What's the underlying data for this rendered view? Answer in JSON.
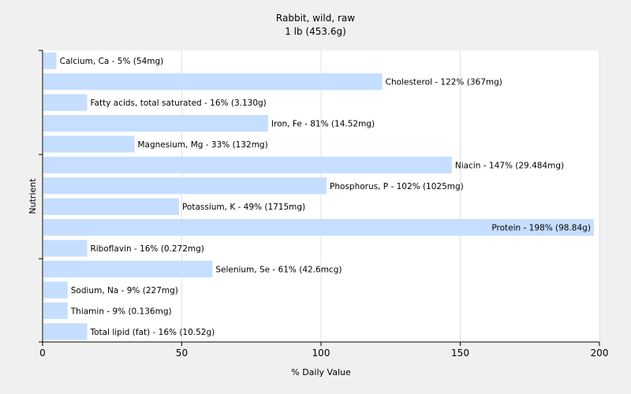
{
  "chart_data": {
    "type": "bar",
    "orientation": "horizontal",
    "title": "Rabbit, wild, raw",
    "subtitle": "1 lb (453.6g)",
    "xlabel": "% Daily Value",
    "ylabel": "Nutrient",
    "xlim": [
      0,
      200
    ],
    "x_ticks": [
      "0",
      "50",
      "100",
      "150",
      "200"
    ],
    "grid": true,
    "categories": [
      "Calcium, Ca",
      "Cholesterol",
      "Fatty acids, total saturated",
      "Iron, Fe",
      "Magnesium, Mg",
      "Niacin",
      "Phosphorus, P",
      "Potassium, K",
      "Protein",
      "Riboflavin",
      "Selenium, Se",
      "Sodium, Na",
      "Thiamin",
      "Total lipid (fat)"
    ],
    "values": [
      5,
      122,
      16,
      81,
      33,
      147,
      102,
      49,
      198,
      16,
      61,
      9,
      9,
      16
    ],
    "labels": [
      "Calcium, Ca - 5% (54mg)",
      "Cholesterol - 122% (367mg)",
      "Fatty acids, total saturated - 16% (3.130g)",
      "Iron, Fe - 81% (14.52mg)",
      "Magnesium, Mg - 33% (132mg)",
      "Niacin - 147% (29.484mg)",
      "Phosphorus, P - 102% (1025mg)",
      "Potassium, K - 49% (1715mg)",
      "Protein - 198% (98.84g)",
      "Riboflavin - 16% (0.272mg)",
      "Selenium, Se - 61% (42.6mcg)",
      "Sodium, Na - 9% (227mg)",
      "Thiamin - 9% (0.136mg)",
      "Total lipid (fat) - 16% (10.52g)"
    ],
    "colors": {
      "bar": "#c6deff",
      "background": "#f0f0f0",
      "plot_background": "#ffffff",
      "grid": "#e2e2e2",
      "axis": "#000000"
    }
  }
}
